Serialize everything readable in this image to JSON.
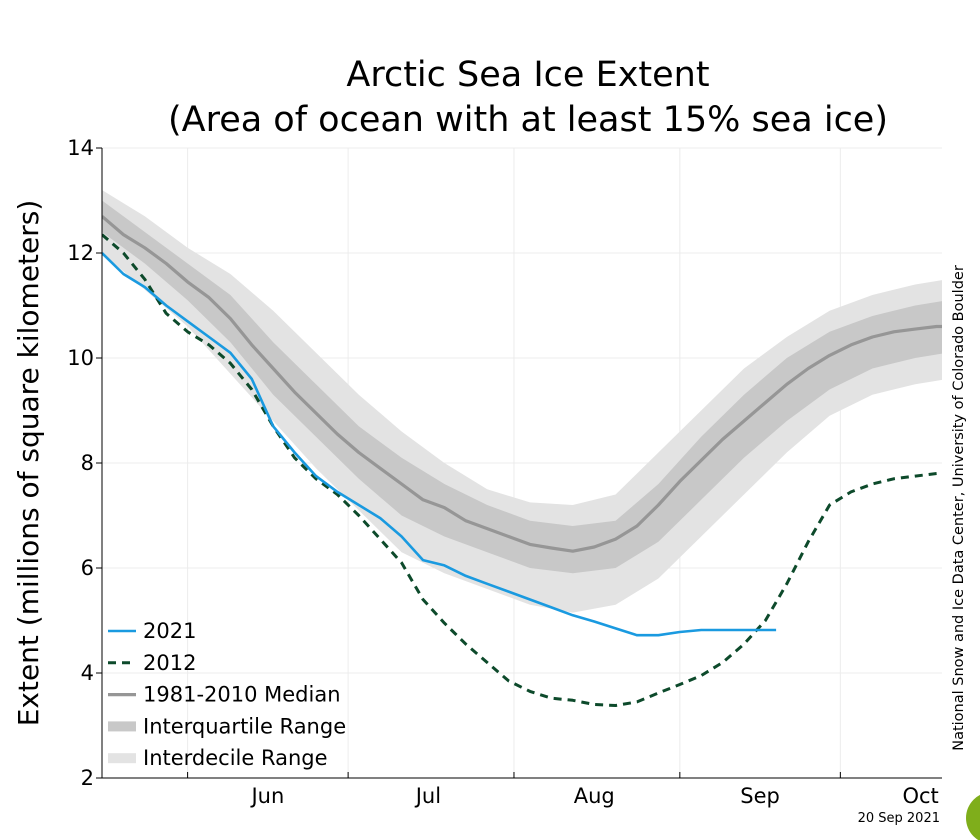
{
  "chart_data": {
    "type": "line",
    "title": "Arctic Sea Ice Extent",
    "subtitle": "(Area of ocean with at least 15% sea ice)",
    "ylabel": "Extent (millions of square kilometers)",
    "xlabel": "",
    "ylim": [
      2,
      14
    ],
    "yticks": [
      2,
      4,
      6,
      8,
      10,
      12,
      14
    ],
    "x_range_day_of_year": [
      136,
      293
    ],
    "month_labels": [
      {
        "label": "Jun",
        "day": 167
      },
      {
        "label": "Jul",
        "day": 197
      },
      {
        "label": "Aug",
        "day": 228
      },
      {
        "label": "Sep",
        "day": 259
      },
      {
        "label": "Oct",
        "day": 289
      }
    ],
    "x_axis_unit": "day of year",
    "grid": true,
    "legend_position": "lower-left",
    "colors": {
      "y2021": "#1a9ae0",
      "y2012": "#0d4a2b",
      "median": "#969696",
      "interquartile": "#c8c8c8",
      "interdecile": "#e3e3e3"
    },
    "series": [
      {
        "name": "2021",
        "style": "solid",
        "x": [
          136,
          140,
          144,
          148,
          152,
          156,
          160,
          164,
          168,
          172,
          176,
          180,
          184,
          188,
          192,
          196,
          200,
          204,
          208,
          212,
          216,
          220,
          224,
          228,
          232,
          236,
          240,
          244,
          248,
          252,
          256,
          260,
          262
        ],
        "y": [
          12.0,
          11.6,
          11.35,
          11.0,
          10.7,
          10.4,
          10.1,
          9.6,
          8.7,
          8.2,
          7.75,
          7.45,
          7.2,
          6.95,
          6.6,
          6.15,
          6.05,
          5.85,
          5.7,
          5.55,
          5.4,
          5.25,
          5.1,
          4.98,
          4.85,
          4.72,
          4.72,
          4.78,
          4.82,
          4.82,
          4.82,
          4.82,
          4.82
        ]
      },
      {
        "name": "2012",
        "style": "dashed",
        "x": [
          136,
          140,
          144,
          148,
          152,
          156,
          160,
          164,
          168,
          172,
          176,
          180,
          184,
          188,
          192,
          196,
          200,
          204,
          208,
          212,
          216,
          220,
          224,
          228,
          232,
          236,
          240,
          244,
          248,
          252,
          256,
          260,
          264,
          268,
          272,
          276,
          280,
          284,
          288,
          292,
          294
        ],
        "y": [
          12.35,
          12.0,
          11.5,
          10.85,
          10.5,
          10.25,
          9.9,
          9.4,
          8.7,
          8.1,
          7.7,
          7.4,
          7.0,
          6.55,
          6.1,
          5.4,
          4.95,
          4.55,
          4.2,
          3.85,
          3.65,
          3.52,
          3.48,
          3.4,
          3.38,
          3.45,
          3.62,
          3.78,
          3.95,
          4.2,
          4.55,
          5.0,
          5.7,
          6.5,
          7.2,
          7.45,
          7.6,
          7.7,
          7.75,
          7.8,
          7.82
        ]
      },
      {
        "name": "1981-2010 Median",
        "style": "solid",
        "x": [
          136,
          140,
          144,
          148,
          152,
          156,
          160,
          164,
          168,
          172,
          176,
          180,
          184,
          188,
          192,
          196,
          200,
          204,
          208,
          212,
          216,
          220,
          224,
          228,
          232,
          236,
          240,
          244,
          248,
          252,
          256,
          260,
          264,
          268,
          272,
          276,
          280,
          284,
          288,
          292,
          294
        ],
        "y": [
          12.7,
          12.35,
          12.1,
          11.8,
          11.45,
          11.15,
          10.75,
          10.25,
          9.8,
          9.35,
          8.95,
          8.55,
          8.2,
          7.9,
          7.6,
          7.3,
          7.15,
          6.9,
          6.75,
          6.6,
          6.45,
          6.38,
          6.32,
          6.4,
          6.55,
          6.8,
          7.2,
          7.65,
          8.05,
          8.45,
          8.8,
          9.15,
          9.5,
          9.8,
          10.05,
          10.25,
          10.4,
          10.5,
          10.55,
          10.6,
          10.6
        ]
      }
    ],
    "bands": [
      {
        "name": "Interquartile Range",
        "x": [
          136,
          144,
          152,
          160,
          168,
          176,
          184,
          192,
          200,
          208,
          216,
          224,
          232,
          240,
          248,
          256,
          264,
          272,
          280,
          288,
          294
        ],
        "low": [
          12.4,
          11.8,
          11.1,
          10.3,
          9.3,
          8.5,
          7.7,
          7.0,
          6.6,
          6.3,
          6.0,
          5.9,
          6.0,
          6.5,
          7.3,
          8.1,
          8.8,
          9.4,
          9.8,
          10.0,
          10.1
        ],
        "high": [
          13.0,
          12.4,
          11.8,
          11.2,
          10.3,
          9.5,
          8.7,
          8.1,
          7.6,
          7.2,
          6.9,
          6.8,
          6.9,
          7.6,
          8.5,
          9.3,
          10.0,
          10.5,
          10.8,
          11.0,
          11.1
        ]
      },
      {
        "name": "Interdecile Range",
        "x": [
          136,
          144,
          152,
          160,
          168,
          176,
          184,
          192,
          200,
          208,
          216,
          224,
          232,
          240,
          248,
          256,
          264,
          272,
          280,
          288,
          294
        ],
        "low": [
          12.0,
          11.3,
          10.6,
          9.7,
          8.8,
          7.9,
          7.1,
          6.3,
          5.9,
          5.6,
          5.3,
          5.15,
          5.3,
          5.8,
          6.6,
          7.4,
          8.2,
          8.9,
          9.3,
          9.5,
          9.6
        ],
        "high": [
          13.2,
          12.7,
          12.1,
          11.6,
          10.9,
          10.1,
          9.3,
          8.6,
          8.0,
          7.5,
          7.25,
          7.2,
          7.4,
          8.2,
          9.0,
          9.8,
          10.4,
          10.9,
          11.2,
          11.4,
          11.5
        ]
      }
    ],
    "legend": [
      "2021",
      "2012",
      "1981-2010 Median",
      "Interquartile Range",
      "Interdecile Range"
    ]
  },
  "credit": "National Snow and Ice Data Center, University of Colorado Boulder",
  "date_stamp": "20 Sep 2021"
}
